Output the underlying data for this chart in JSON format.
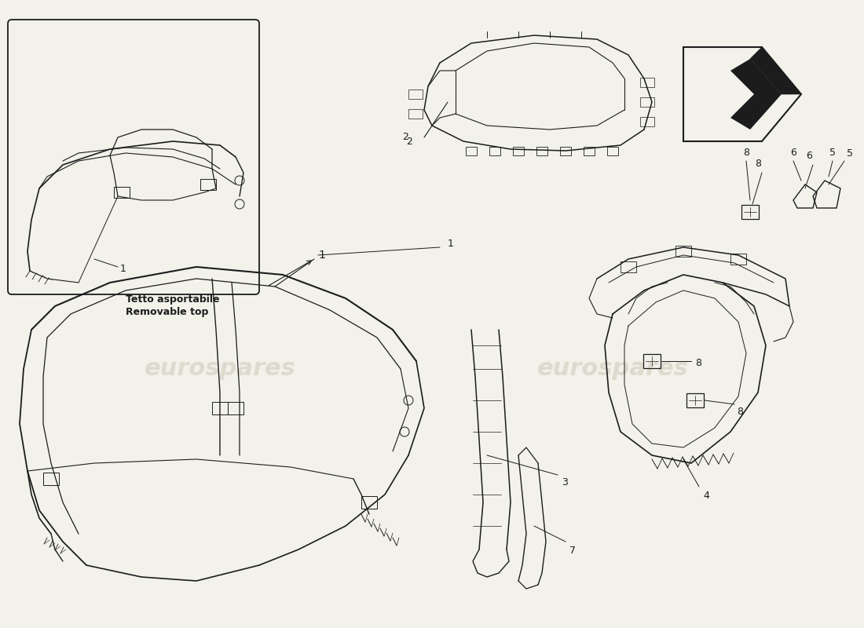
{
  "bg_color": "#f2f1ea",
  "line_color": "#1c1c1c",
  "watermark_color": "#ccc9b8",
  "watermark_text": "eurospares",
  "label1_it": "Tetto asportabile",
  "label1_en": "Removable top",
  "fig_width": 11.0,
  "fig_height": 8.0,
  "dpi": 100
}
